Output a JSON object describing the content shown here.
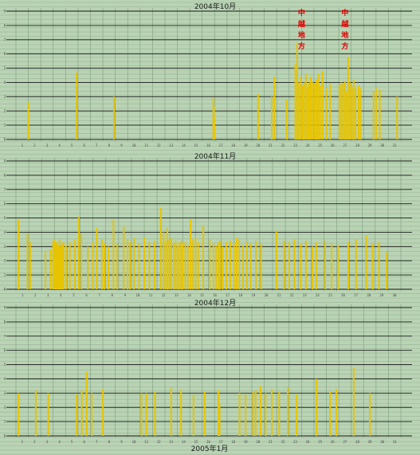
{
  "background": "#b9d3b4",
  "grid_color": "#7fa07f",
  "major_line_color": "#1a1a1a",
  "bar_color": "#e8c400",
  "annotation_color": "#e00000",
  "bottom_title": "2005年1月",
  "chart_data": [
    {
      "type": "bar",
      "title": "2004年10月",
      "ylim": [
        0,
        9
      ],
      "days": 31,
      "annotations": [
        {
          "text": [
            "中",
            "越",
            "地",
            "方"
          ],
          "day": 23.0
        },
        {
          "text": [
            "中",
            "越",
            "地",
            "方"
          ],
          "day": 26.5
        }
      ],
      "bars": [
        {
          "x": 1.0,
          "y": 2.6
        },
        {
          "x": 4.9,
          "y": 4.7
        },
        {
          "x": 7.9,
          "y": 3.0
        },
        {
          "x": 15.9,
          "y": 2.9
        },
        {
          "x": 15.95,
          "y": 2.3
        },
        {
          "x": 15.98,
          "y": 1.5
        },
        {
          "x": 19.5,
          "y": 3.2
        },
        {
          "x": 20.6,
          "y": 3.0
        },
        {
          "x": 20.8,
          "y": 4.4
        },
        {
          "x": 21.8,
          "y": 2.8
        },
        {
          "x": 22.5,
          "y": 5.3
        },
        {
          "x": 22.65,
          "y": 6.8
        },
        {
          "x": 22.8,
          "y": 4.0
        },
        {
          "x": 22.95,
          "y": 4.4
        },
        {
          "x": 23.1,
          "y": 3.8
        },
        {
          "x": 23.2,
          "y": 4.0
        },
        {
          "x": 23.35,
          "y": 4.6
        },
        {
          "x": 23.5,
          "y": 3.7
        },
        {
          "x": 23.6,
          "y": 4.0
        },
        {
          "x": 23.75,
          "y": 4.4
        },
        {
          "x": 23.9,
          "y": 4.1
        },
        {
          "x": 24.05,
          "y": 3.9
        },
        {
          "x": 24.2,
          "y": 4.2
        },
        {
          "x": 24.35,
          "y": 4.6
        },
        {
          "x": 24.5,
          "y": 3.8
        },
        {
          "x": 24.7,
          "y": 4.8
        },
        {
          "x": 25.0,
          "y": 3.6
        },
        {
          "x": 25.3,
          "y": 3.9
        },
        {
          "x": 26.05,
          "y": 3.8
        },
        {
          "x": 26.2,
          "y": 4.0
        },
        {
          "x": 26.35,
          "y": 3.9
        },
        {
          "x": 26.5,
          "y": 4.1
        },
        {
          "x": 26.6,
          "y": 3.4
        },
        {
          "x": 26.75,
          "y": 5.8
        },
        {
          "x": 26.9,
          "y": 4.0
        },
        {
          "x": 27.05,
          "y": 3.7
        },
        {
          "x": 27.2,
          "y": 4.2
        },
        {
          "x": 27.35,
          "y": 3.6
        },
        {
          "x": 27.6,
          "y": 3.8
        },
        {
          "x": 27.75,
          "y": 3.6
        },
        {
          "x": 28.8,
          "y": 3.4
        },
        {
          "x": 29.0,
          "y": 3.6
        },
        {
          "x": 29.3,
          "y": 3.5
        },
        {
          "x": 30.7,
          "y": 3.0
        }
      ]
    },
    {
      "type": "bar",
      "title": "2004年11月",
      "ylim": [
        0,
        9
      ],
      "days": 30,
      "bars": [
        {
          "x": 0.2,
          "y": 4.9
        },
        {
          "x": 0.9,
          "y": 3.9
        },
        {
          "x": 1.1,
          "y": 3.3
        },
        {
          "x": 2.3,
          "y": 2.7
        },
        {
          "x": 2.7,
          "y": 2.8
        },
        {
          "x": 2.9,
          "y": 3.4
        },
        {
          "x": 3.0,
          "y": 3.5
        },
        {
          "x": 3.1,
          "y": 3.2
        },
        {
          "x": 3.2,
          "y": 3.3
        },
        {
          "x": 3.3,
          "y": 3.1
        },
        {
          "x": 3.4,
          "y": 3.5
        },
        {
          "x": 3.5,
          "y": 3.0
        },
        {
          "x": 3.6,
          "y": 3.2
        },
        {
          "x": 3.7,
          "y": 3.3
        },
        {
          "x": 3.9,
          "y": 3.1
        },
        {
          "x": 4.2,
          "y": 3.3
        },
        {
          "x": 4.6,
          "y": 3.5
        },
        {
          "x": 4.9,
          "y": 5.1
        },
        {
          "x": 5.1,
          "y": 3.9
        },
        {
          "x": 5.6,
          "y": 3.0
        },
        {
          "x": 6.0,
          "y": 3.3
        },
        {
          "x": 6.3,
          "y": 4.3
        },
        {
          "x": 6.7,
          "y": 3.5
        },
        {
          "x": 6.9,
          "y": 3.2
        },
        {
          "x": 7.2,
          "y": 3.0
        },
        {
          "x": 7.6,
          "y": 4.9
        },
        {
          "x": 7.9,
          "y": 3.2
        },
        {
          "x": 8.4,
          "y": 4.4
        },
        {
          "x": 8.7,
          "y": 3.5
        },
        {
          "x": 8.9,
          "y": 3.3
        },
        {
          "x": 9.2,
          "y": 3.6
        },
        {
          "x": 9.6,
          "y": 3.2
        },
        {
          "x": 10.0,
          "y": 3.6
        },
        {
          "x": 10.4,
          "y": 3.3
        },
        {
          "x": 10.8,
          "y": 3.4
        },
        {
          "x": 11.3,
          "y": 5.7
        },
        {
          "x": 11.5,
          "y": 4.0
        },
        {
          "x": 11.65,
          "y": 3.4
        },
        {
          "x": 11.8,
          "y": 4.3
        },
        {
          "x": 11.95,
          "y": 3.5
        },
        {
          "x": 12.1,
          "y": 3.6
        },
        {
          "x": 12.3,
          "y": 3.2
        },
        {
          "x": 12.45,
          "y": 3.4
        },
        {
          "x": 12.6,
          "y": 3.1
        },
        {
          "x": 12.75,
          "y": 3.3
        },
        {
          "x": 12.9,
          "y": 3.4
        },
        {
          "x": 13.0,
          "y": 3.2
        },
        {
          "x": 13.2,
          "y": 3.3
        },
        {
          "x": 13.4,
          "y": 3.1
        },
        {
          "x": 13.6,
          "y": 4.9
        },
        {
          "x": 13.8,
          "y": 3.5
        },
        {
          "x": 14.0,
          "y": 3.6
        },
        {
          "x": 14.2,
          "y": 3.3
        },
        {
          "x": 14.6,
          "y": 4.5
        },
        {
          "x": 15.1,
          "y": 3.5
        },
        {
          "x": 15.4,
          "y": 3.2
        },
        {
          "x": 15.6,
          "y": 3.1
        },
        {
          "x": 15.8,
          "y": 3.3
        },
        {
          "x": 15.9,
          "y": 3.4
        },
        {
          "x": 16.1,
          "y": 3.0
        },
        {
          "x": 16.4,
          "y": 3.3
        },
        {
          "x": 16.7,
          "y": 3.4
        },
        {
          "x": 17.0,
          "y": 3.2
        },
        {
          "x": 17.2,
          "y": 3.6
        },
        {
          "x": 17.4,
          "y": 3.5
        },
        {
          "x": 17.7,
          "y": 3.1
        },
        {
          "x": 18.0,
          "y": 3.3
        },
        {
          "x": 18.3,
          "y": 3.2
        },
        {
          "x": 18.7,
          "y": 3.4
        },
        {
          "x": 19.1,
          "y": 3.2
        },
        {
          "x": 20.3,
          "y": 4.1
        },
        {
          "x": 20.9,
          "y": 3.4
        },
        {
          "x": 21.3,
          "y": 3.3
        },
        {
          "x": 21.7,
          "y": 3.5
        },
        {
          "x": 22.2,
          "y": 3.2
        },
        {
          "x": 22.6,
          "y": 3.4
        },
        {
          "x": 23.1,
          "y": 3.0
        },
        {
          "x": 23.4,
          "y": 3.3
        },
        {
          "x": 24.1,
          "y": 3.4
        },
        {
          "x": 24.6,
          "y": 3.2
        },
        {
          "x": 25.1,
          "y": 3.1
        },
        {
          "x": 25.9,
          "y": 3.3
        },
        {
          "x": 26.5,
          "y": 3.5
        },
        {
          "x": 27.3,
          "y": 3.8
        },
        {
          "x": 27.8,
          "y": 3.2
        },
        {
          "x": 28.3,
          "y": 3.3
        },
        {
          "x": 28.9,
          "y": 2.6
        }
      ]
    },
    {
      "type": "bar",
      "title": "2004年12月",
      "ylim": [
        0,
        9
      ],
      "days": 31,
      "bars": [
        {
          "x": 0.2,
          "y": 3.0
        },
        {
          "x": 1.6,
          "y": 3.2
        },
        {
          "x": 2.6,
          "y": 3.0
        },
        {
          "x": 4.9,
          "y": 2.9
        },
        {
          "x": 5.3,
          "y": 3.2
        },
        {
          "x": 5.7,
          "y": 4.5
        },
        {
          "x": 6.1,
          "y": 3.0
        },
        {
          "x": 7.0,
          "y": 3.3
        },
        {
          "x": 10.1,
          "y": 3.0
        },
        {
          "x": 10.5,
          "y": 3.0
        },
        {
          "x": 11.2,
          "y": 3.1
        },
        {
          "x": 12.5,
          "y": 3.4
        },
        {
          "x": 13.3,
          "y": 3.2
        },
        {
          "x": 14.3,
          "y": 2.9
        },
        {
          "x": 15.2,
          "y": 3.1
        },
        {
          "x": 16.3,
          "y": 3.2
        },
        {
          "x": 16.4,
          "y": 2.2
        },
        {
          "x": 18.0,
          "y": 3.0
        },
        {
          "x": 18.5,
          "y": 2.9
        },
        {
          "x": 19.1,
          "y": 3.1
        },
        {
          "x": 19.3,
          "y": 3.2
        },
        {
          "x": 19.7,
          "y": 3.5
        },
        {
          "x": 20.1,
          "y": 3.0
        },
        {
          "x": 20.6,
          "y": 3.3
        },
        {
          "x": 21.2,
          "y": 3.1
        },
        {
          "x": 21.9,
          "y": 3.4
        },
        {
          "x": 22.6,
          "y": 2.9
        },
        {
          "x": 24.2,
          "y": 4.0
        },
        {
          "x": 25.3,
          "y": 3.1
        },
        {
          "x": 25.8,
          "y": 3.3
        },
        {
          "x": 27.2,
          "y": 4.8
        },
        {
          "x": 28.5,
          "y": 3.0
        }
      ]
    }
  ]
}
